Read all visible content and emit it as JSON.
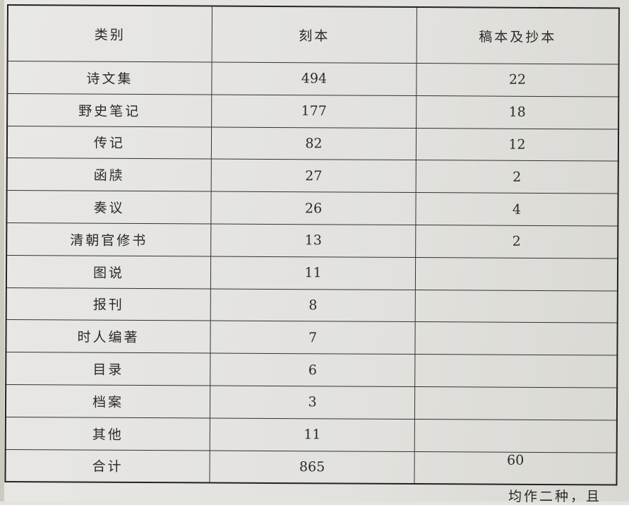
{
  "table": {
    "headers": [
      "类别",
      "刻本",
      "稿本及抄本"
    ],
    "rows": [
      {
        "category": "诗文集",
        "printed": "494",
        "manuscript": "22"
      },
      {
        "category": "野史笔记",
        "printed": "177",
        "manuscript": "18"
      },
      {
        "category": "传记",
        "printed": "82",
        "manuscript": "12"
      },
      {
        "category": "函牍",
        "printed": "27",
        "manuscript": "2"
      },
      {
        "category": "奏议",
        "printed": "26",
        "manuscript": "4"
      },
      {
        "category": "清朝官修书",
        "printed": "13",
        "manuscript": "2"
      },
      {
        "category": "图说",
        "printed": "11",
        "manuscript": ""
      },
      {
        "category": "报刊",
        "printed": "8",
        "manuscript": ""
      },
      {
        "category": "时人编著",
        "printed": "7",
        "manuscript": ""
      },
      {
        "category": "目录",
        "printed": "6",
        "manuscript": ""
      },
      {
        "category": "档案",
        "printed": "3",
        "manuscript": ""
      },
      {
        "category": "其他",
        "printed": "11",
        "manuscript": ""
      },
      {
        "category": "合计",
        "printed": "865",
        "manuscript": "60"
      }
    ]
  },
  "footer_text": "均作二种，且"
}
